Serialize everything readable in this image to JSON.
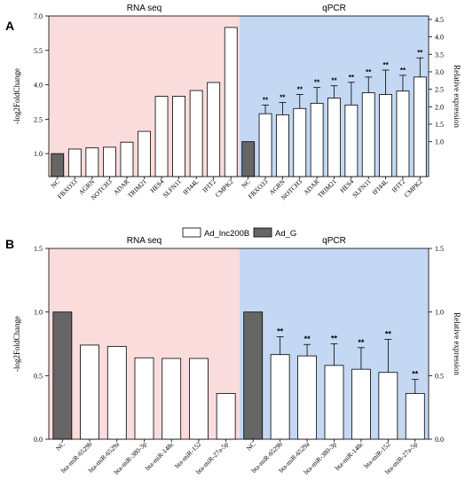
{
  "legend": {
    "entries": [
      {
        "label": "Ad_lnc200B",
        "color": "#ffffff"
      },
      {
        "label": "Ad_G",
        "color": "#666666"
      }
    ]
  },
  "colors": {
    "rna_bg": "#fadcdc",
    "qpcr_bg": "#c4d8f4",
    "nc_bar": "#666666",
    "bar": "#ffffff",
    "stroke": "#000000"
  },
  "chart_data": [
    {
      "type": "bar",
      "panel_label": "A",
      "section_titles": [
        "RNA seq",
        "qPCR"
      ],
      "ylabel": "-log2FoldChange",
      "y2label": "Relative expression",
      "ylim": [
        0,
        7
      ],
      "yticks": [
        "1.0",
        "2.5",
        "4.0",
        "5.5",
        "7.0"
      ],
      "y2lim": [
        0,
        4.6
      ],
      "y2ticks": [
        "1.0",
        "1.5",
        "2.0",
        "2.5",
        "3.0",
        "3.5",
        "4.0",
        "4.5"
      ],
      "grid": false,
      "rna": {
        "categories": [
          "NC",
          "FBXO33",
          "AGRN",
          "NOTCH3",
          "ADAR",
          "TRIM21",
          "HES4",
          "SLFN11",
          "IFI44L",
          "IFIT2",
          "CMPK2"
        ],
        "values": [
          1.0,
          1.2,
          1.25,
          1.28,
          1.5,
          1.97,
          3.5,
          3.5,
          3.75,
          4.1,
          6.5
        ]
      },
      "qpcr": {
        "categories": [
          "NC",
          "FBXO33",
          "AGRN",
          "NOTCH3",
          "ADAR",
          "TRIM21",
          "HES4",
          "SLFN11",
          "IFI44L",
          "IFIT2",
          "CMPK2"
        ],
        "values": [
          1.0,
          1.8,
          1.77,
          1.95,
          2.1,
          2.25,
          2.05,
          2.4,
          2.35,
          2.45,
          2.85
        ],
        "errors": [
          0,
          0.25,
          0.35,
          0.4,
          0.45,
          0.35,
          0.65,
          0.45,
          0.7,
          0.45,
          0.55
        ],
        "significance": [
          "",
          "**",
          "**",
          "**",
          "**",
          "**",
          "**",
          "**",
          "**",
          "**",
          "**"
        ]
      }
    },
    {
      "type": "bar",
      "panel_label": "B",
      "section_titles": [
        "RNA seq",
        "qPCR"
      ],
      "ylabel": "-log2FoldChange",
      "y2label": "Relative expression",
      "ylim": [
        0,
        1.5
      ],
      "yticks": [
        "0.0",
        "0.5",
        "1.0",
        "1.5"
      ],
      "y2lim": [
        0,
        1.5
      ],
      "y2ticks": [
        "0.0",
        "0.5",
        "1.0",
        "1.5"
      ],
      "grid": false,
      "rna": {
        "categories": [
          "NC",
          "bta-miR-6529b",
          "bta-miR-6529a",
          "bta-miR-380-3p",
          "bta-miR-148c",
          "bta-miR-152",
          "bta-miR-27a-5p"
        ],
        "values": [
          1.0,
          0.74,
          0.73,
          0.64,
          0.635,
          0.635,
          0.36
        ]
      },
      "qpcr": {
        "categories": [
          "NC",
          "bta-miR-6529b",
          "bta-miR-6529a",
          "bta-miR-380-3p",
          "bta-miR-148c",
          "bta-miR-152",
          "bta-miR-27a-5p"
        ],
        "values": [
          1.0,
          0.665,
          0.655,
          0.58,
          0.55,
          0.525,
          0.36
        ],
        "errors": [
          0,
          0.14,
          0.09,
          0.17,
          0.17,
          0.26,
          0.11
        ],
        "significance": [
          "",
          "**",
          "**",
          "**",
          "**",
          "**",
          "**"
        ]
      }
    }
  ]
}
